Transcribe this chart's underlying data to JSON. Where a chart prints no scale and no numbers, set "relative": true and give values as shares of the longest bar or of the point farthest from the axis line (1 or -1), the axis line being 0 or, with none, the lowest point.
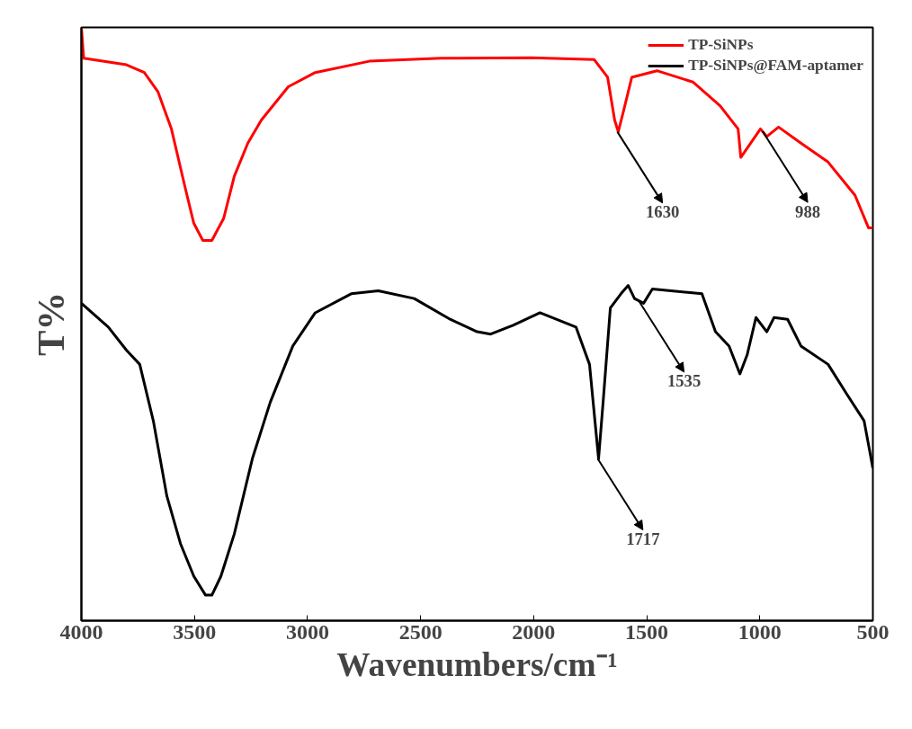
{
  "chart_data": {
    "type": "line",
    "relative": true,
    "xlabel": "Wavenumbers/cm⁻¹",
    "ylabel": "T%",
    "xlim": [
      4000,
      500
    ],
    "xticks": [
      4000,
      3500,
      3000,
      2500,
      2000,
      1500,
      1000,
      500
    ],
    "grid": false,
    "legend": "top right",
    "marker": "none",
    "line_style": "solid",
    "series": [
      {
        "name": "TP-SiNPs",
        "color": "#ff0000",
        "x": [
          4000,
          3990,
          3801,
          3722,
          3662,
          3602,
          3543,
          3503,
          3463,
          3423,
          3371,
          3324,
          3264,
          3204,
          3085,
          2966,
          2727,
          2409,
          2011,
          1733,
          1673,
          1642,
          1626,
          1602,
          1566,
          1455,
          1296,
          1176,
          1096,
          1084,
          997,
          969,
          917,
          818,
          698,
          579,
          519,
          500
        ],
        "values": [
          1.0,
          0.948,
          0.937,
          0.924,
          0.892,
          0.829,
          0.733,
          0.67,
          0.641,
          0.641,
          0.678,
          0.749,
          0.805,
          0.844,
          0.9,
          0.924,
          0.943,
          0.948,
          0.949,
          0.946,
          0.916,
          0.844,
          0.824,
          0.86,
          0.916,
          0.927,
          0.908,
          0.868,
          0.829,
          0.781,
          0.829,
          0.816,
          0.832,
          0.805,
          0.773,
          0.717,
          0.662,
          0.662
        ]
      },
      {
        "name": "TP-SiNPs@FAM-aptamer",
        "color": "#000000",
        "x": [
          4000,
          3881,
          3801,
          3742,
          3682,
          3622,
          3562,
          3503,
          3451,
          3423,
          3383,
          3324,
          3244,
          3165,
          3065,
          2966,
          2807,
          2687,
          2528,
          2369,
          2250,
          2190,
          2091,
          1972,
          1813,
          1753,
          1713,
          1693,
          1661,
          1614,
          1582,
          1554,
          1514,
          1475,
          1256,
          1196,
          1136,
          1088,
          1056,
          1017,
          985,
          969,
          937,
          877,
          818,
          698,
          619,
          539,
          500
        ],
        "values": [
          0.535,
          0.495,
          0.456,
          0.432,
          0.337,
          0.21,
          0.13,
          0.075,
          0.043,
          0.043,
          0.075,
          0.146,
          0.273,
          0.368,
          0.463,
          0.519,
          0.551,
          0.556,
          0.543,
          0.508,
          0.487,
          0.483,
          0.498,
          0.519,
          0.495,
          0.432,
          0.273,
          0.368,
          0.527,
          0.551,
          0.565,
          0.543,
          0.535,
          0.559,
          0.551,
          0.487,
          0.463,
          0.416,
          0.448,
          0.511,
          0.495,
          0.487,
          0.511,
          0.508,
          0.463,
          0.432,
          0.384,
          0.337,
          0.257
        ]
      }
    ],
    "annotations": [
      {
        "text": "1630",
        "x": 1630,
        "y": 0.824
      },
      {
        "text": "988",
        "x": 988,
        "y": 0.825
      },
      {
        "text": "1535",
        "x": 1535,
        "y": 0.539
      },
      {
        "text": "1717",
        "x": 1717,
        "y": 0.273
      }
    ]
  }
}
